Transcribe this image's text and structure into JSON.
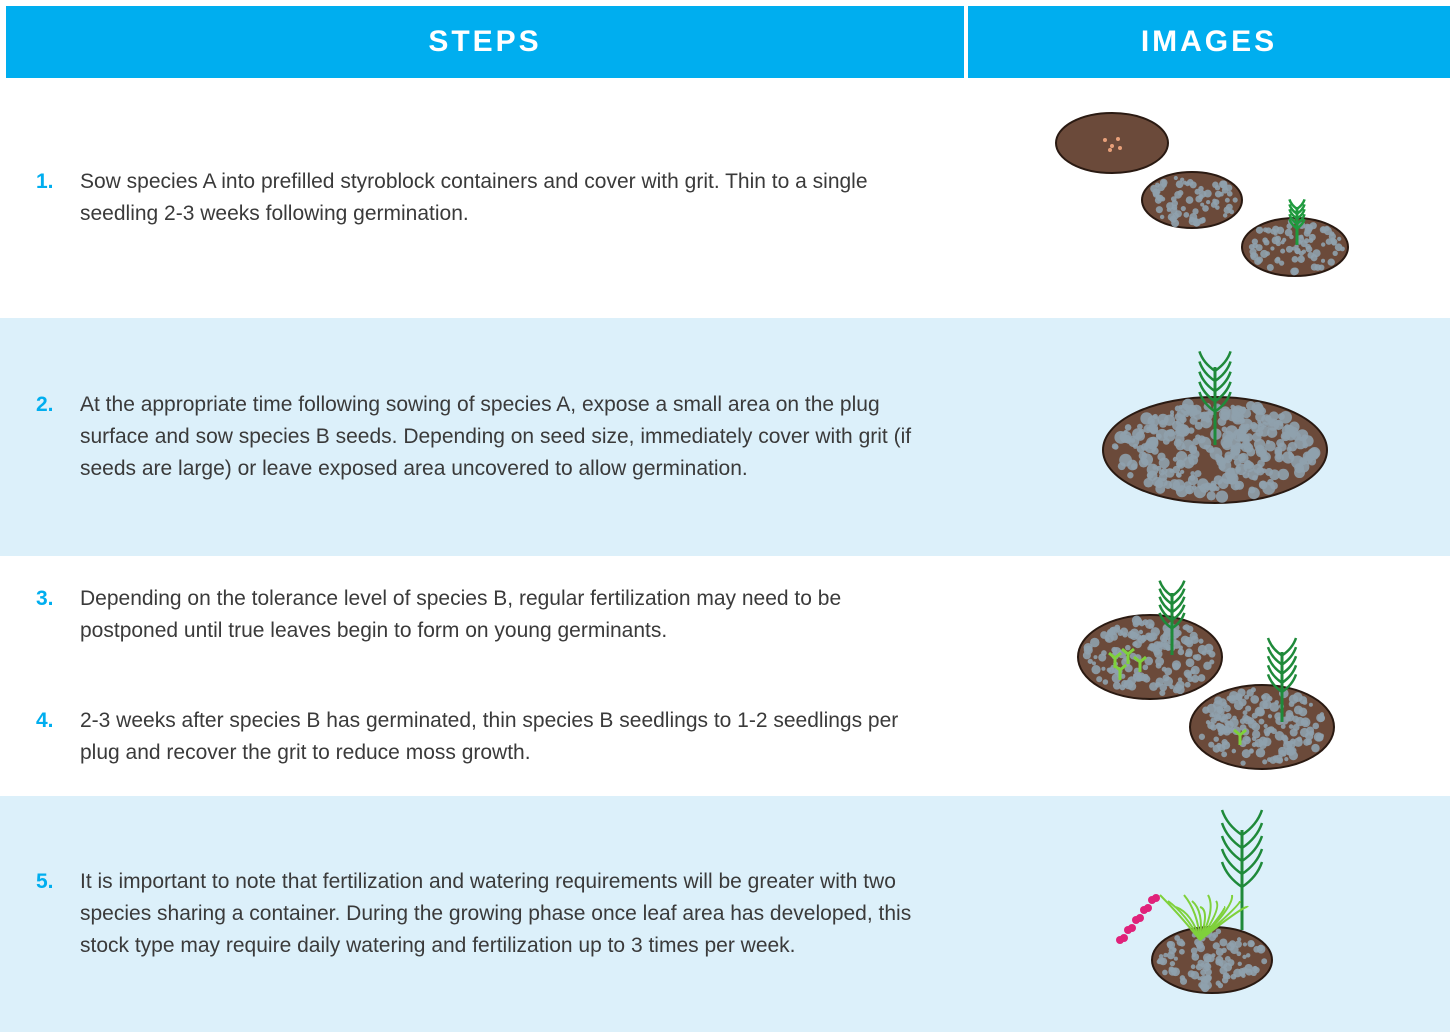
{
  "header": {
    "steps": "STEPS",
    "images": "IMAGES"
  },
  "rows": [
    {
      "steps": [
        {
          "number": "1.",
          "text": "Sow species A into prefilled styroblock containers and cover with grit. Thin to a single seedling 2-3 weeks following germination."
        }
      ]
    },
    {
      "steps": [
        {
          "number": "2.",
          "text": "At the appropriate time following sowing of species A, expose a small area on the plug surface and sow species B seeds. Depending on seed size, immediately cover with grit (if seeds are large) or leave exposed area uncovered to allow germination."
        }
      ]
    },
    {
      "steps": [
        {
          "number": "3.",
          "text": "Depending on the tolerance level of species B, regular fertilization may need to be postponed until true leaves begin to form on young germinants."
        },
        {
          "number": "4.",
          "text": "2-3 weeks after species B has germinated, thin species B seedlings to 1-2 seedlings per plug and recover the grit to reduce moss growth."
        }
      ]
    },
    {
      "steps": [
        {
          "number": "5.",
          "text": "It is important to note that fertilization and watering requirements will be greater with two species sharing a container. During the growing phase once leaf area has developed, this stock type may require daily watering and fertilization up to 3 times per week."
        }
      ]
    }
  ]
}
